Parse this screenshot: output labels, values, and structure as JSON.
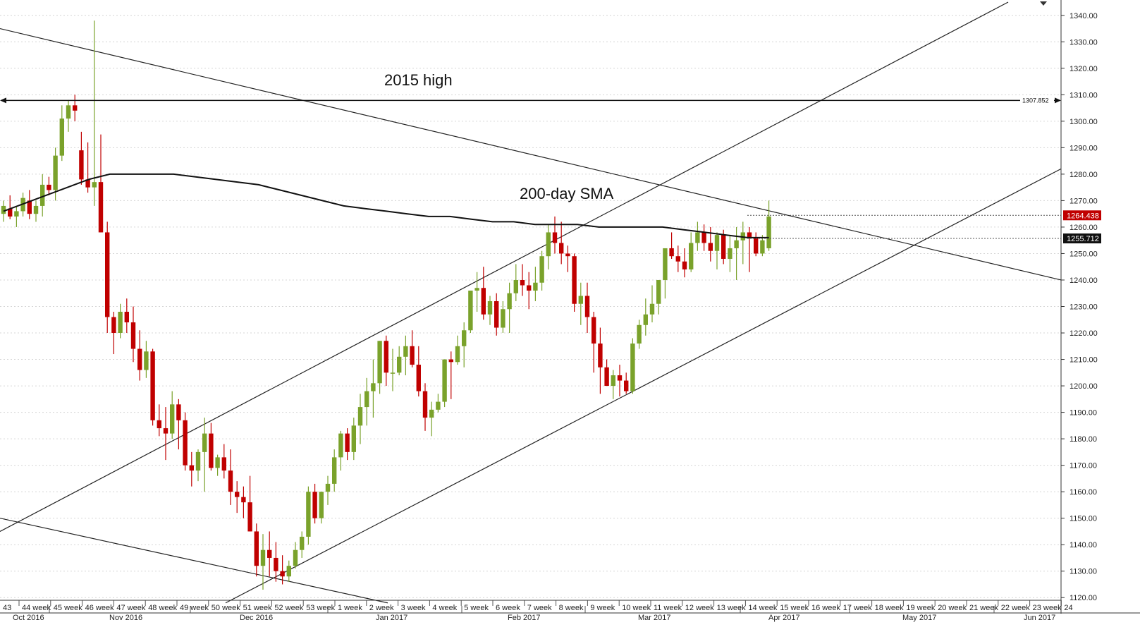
{
  "chart_data": {
    "type": "candlestick",
    "ylim": [
      1115,
      1345
    ],
    "y_ticks": [
      1120,
      1130,
      1140,
      1150,
      1160,
      1170,
      1180,
      1190,
      1200,
      1210,
      1220,
      1230,
      1240,
      1250,
      1260,
      1270,
      1280,
      1290,
      1300,
      1310,
      1320,
      1330,
      1340
    ],
    "y_tick_labels": [
      "1120.00",
      "1130.00",
      "1140.00",
      "1150.00",
      "1160.00",
      "1170.00",
      "1180.00",
      "1190.00",
      "1200.00",
      "1210.00",
      "1220.00",
      "1230.00",
      "1240.00",
      "1250.00",
      "1260.00",
      "1270.00",
      "1280.00",
      "1290.00",
      "1300.00",
      "1310.00",
      "1320.00",
      "1330.00",
      "1340.00"
    ],
    "week_labels": [
      "43",
      "44 week",
      "45 week",
      "46 week",
      "47 week",
      "48 week",
      "49 week",
      "50 week",
      "51 week",
      "52 week",
      "53 week",
      "1 week",
      "2 week",
      "3 week",
      "4 week",
      "5 week",
      "6 week",
      "7 week",
      "8 week",
      "9 week",
      "10 week",
      "11 week",
      "12 week",
      "13 week",
      "14 week",
      "15 week",
      "16 week",
      "17 week",
      "18 week",
      "19 week",
      "20 week",
      "21 week",
      "22 week",
      "23 week",
      "24"
    ],
    "month_labels": [
      "Oct 2016",
      "Nov 2016",
      "Dec 2016",
      "Jan 2017",
      "Feb 2017",
      "Mar 2017",
      "Apr 2017",
      "May 2017",
      "Jun 2017"
    ],
    "candles": [
      [
        1265,
        1270,
        1262,
        1268
      ],
      [
        1267,
        1272,
        1263,
        1264
      ],
      [
        1264,
        1268,
        1260,
        1266
      ],
      [
        1266,
        1273,
        1264,
        1271
      ],
      [
        1270,
        1274,
        1263,
        1265
      ],
      [
        1265,
        1270,
        1262,
        1268
      ],
      [
        1268,
        1280,
        1264,
        1276
      ],
      [
        1276,
        1279,
        1272,
        1274
      ],
      [
        1274,
        1290,
        1270,
        1287
      ],
      [
        1287,
        1306,
        1285,
        1301
      ],
      [
        1301,
        1308,
        1296,
        1306
      ],
      [
        1306,
        1310,
        1300,
        1304
      ],
      [
        1289,
        1296,
        1276,
        1278
      ],
      [
        1278,
        1292,
        1273,
        1275
      ],
      [
        1275,
        1338,
        1268,
        1277
      ],
      [
        1277,
        1295,
        1258,
        1258
      ],
      [
        1258,
        1262,
        1220,
        1226
      ],
      [
        1226,
        1228,
        1212,
        1220
      ],
      [
        1220,
        1231,
        1218,
        1228
      ],
      [
        1228,
        1233,
        1220,
        1224
      ],
      [
        1224,
        1230,
        1209,
        1214
      ],
      [
        1214,
        1221,
        1202,
        1206
      ],
      [
        1206,
        1217,
        1203,
        1213
      ],
      [
        1213,
        1214,
        1185,
        1187
      ],
      [
        1187,
        1193,
        1181,
        1184
      ],
      [
        1184,
        1192,
        1172,
        1182
      ],
      [
        1182,
        1198,
        1180,
        1193
      ],
      [
        1193,
        1195,
        1176,
        1187
      ],
      [
        1187,
        1190,
        1168,
        1170
      ],
      [
        1170,
        1175,
        1162,
        1168
      ],
      [
        1168,
        1176,
        1164,
        1175
      ],
      [
        1175,
        1188,
        1160,
        1182
      ],
      [
        1182,
        1186,
        1168,
        1169
      ],
      [
        1169,
        1174,
        1166,
        1173
      ],
      [
        1173,
        1178,
        1165,
        1168
      ],
      [
        1168,
        1176,
        1155,
        1160
      ],
      [
        1160,
        1164,
        1152,
        1158
      ],
      [
        1158,
        1162,
        1150,
        1156
      ],
      [
        1156,
        1166,
        1145,
        1145
      ],
      [
        1145,
        1148,
        1128,
        1132
      ],
      [
        1132,
        1144,
        1123,
        1138
      ],
      [
        1138,
        1145,
        1128,
        1135
      ],
      [
        1135,
        1141,
        1126,
        1130
      ],
      [
        1130,
        1136,
        1125,
        1128
      ],
      [
        1128,
        1134,
        1126,
        1132
      ],
      [
        1132,
        1141,
        1131,
        1138
      ],
      [
        1138,
        1145,
        1135,
        1143
      ],
      [
        1143,
        1162,
        1140,
        1160
      ],
      [
        1160,
        1163,
        1148,
        1150
      ],
      [
        1150,
        1160,
        1148,
        1160
      ],
      [
        1160,
        1166,
        1155,
        1163
      ],
      [
        1163,
        1176,
        1160,
        1173
      ],
      [
        1173,
        1183,
        1168,
        1182
      ],
      [
        1182,
        1184,
        1172,
        1175
      ],
      [
        1175,
        1188,
        1172,
        1185
      ],
      [
        1185,
        1197,
        1178,
        1192
      ],
      [
        1192,
        1203,
        1185,
        1198
      ],
      [
        1198,
        1210,
        1188,
        1201
      ],
      [
        1201,
        1217,
        1197,
        1217
      ],
      [
        1217,
        1219,
        1200,
        1205
      ],
      [
        1205,
        1214,
        1198,
        1205
      ],
      [
        1205,
        1215,
        1204,
        1211
      ],
      [
        1211,
        1219,
        1204,
        1215
      ],
      [
        1215,
        1221,
        1207,
        1208
      ],
      [
        1208,
        1215,
        1196,
        1198
      ],
      [
        1198,
        1201,
        1183,
        1188
      ],
      [
        1188,
        1194,
        1181,
        1191
      ],
      [
        1191,
        1197,
        1190,
        1194
      ],
      [
        1194,
        1210,
        1192,
        1210
      ],
      [
        1210,
        1213,
        1195,
        1209
      ],
      [
        1209,
        1219,
        1208,
        1215
      ],
      [
        1215,
        1224,
        1207,
        1221
      ],
      [
        1221,
        1235,
        1220,
        1236
      ],
      [
        1236,
        1243,
        1228,
        1237
      ],
      [
        1237,
        1245,
        1225,
        1227
      ],
      [
        1227,
        1234,
        1223,
        1232
      ],
      [
        1232,
        1235,
        1219,
        1222
      ],
      [
        1222,
        1232,
        1220,
        1229
      ],
      [
        1229,
        1239,
        1220,
        1235
      ],
      [
        1235,
        1246,
        1232,
        1240
      ],
      [
        1240,
        1246,
        1234,
        1238
      ],
      [
        1238,
        1243,
        1229,
        1236
      ],
      [
        1236,
        1245,
        1232,
        1239
      ],
      [
        1239,
        1251,
        1236,
        1249
      ],
      [
        1249,
        1261,
        1244,
        1258
      ],
      [
        1258,
        1264,
        1250,
        1254
      ],
      [
        1254,
        1262,
        1246,
        1250
      ],
      [
        1250,
        1253,
        1243,
        1249
      ],
      [
        1249,
        1250,
        1228,
        1231
      ],
      [
        1231,
        1239,
        1223,
        1234
      ],
      [
        1234,
        1239,
        1220,
        1226
      ],
      [
        1226,
        1228,
        1205,
        1216
      ],
      [
        1216,
        1222,
        1197,
        1207
      ],
      [
        1207,
        1210,
        1200,
        1200
      ],
      [
        1200,
        1206,
        1195,
        1204
      ],
      [
        1204,
        1208,
        1196,
        1202
      ],
      [
        1202,
        1205,
        1197,
        1198
      ],
      [
        1198,
        1218,
        1197,
        1216
      ],
      [
        1216,
        1225,
        1214,
        1223
      ],
      [
        1223,
        1233,
        1219,
        1227
      ],
      [
        1227,
        1238,
        1224,
        1231
      ],
      [
        1231,
        1240,
        1227,
        1240
      ],
      [
        1240,
        1251,
        1233,
        1252
      ],
      [
        1252,
        1258,
        1248,
        1249
      ],
      [
        1249,
        1253,
        1243,
        1247
      ],
      [
        1247,
        1252,
        1241,
        1244
      ],
      [
        1244,
        1258,
        1243,
        1254
      ],
      [
        1254,
        1262,
        1251,
        1258
      ],
      [
        1258,
        1261,
        1251,
        1254
      ],
      [
        1254,
        1260,
        1247,
        1251
      ],
      [
        1251,
        1258,
        1244,
        1257
      ],
      [
        1257,
        1259,
        1246,
        1248
      ],
      [
        1248,
        1257,
        1243,
        1252
      ],
      [
        1252,
        1260,
        1240,
        1255
      ],
      [
        1255,
        1262,
        1246,
        1258
      ],
      [
        1258,
        1260,
        1243,
        1256
      ],
      [
        1256,
        1258,
        1249,
        1250
      ],
      [
        1250,
        1257,
        1249,
        1255
      ],
      [
        1252,
        1270,
        1251,
        1264
      ]
    ],
    "sma200": {
      "label": "200-day SMA",
      "values": [
        1266,
        1269,
        1272,
        1275,
        1278,
        1280,
        1280,
        1280,
        1280,
        1279,
        1278,
        1277,
        1276,
        1274,
        1272,
        1270,
        1268,
        1267,
        1266,
        1265,
        1264,
        1264,
        1263,
        1262,
        1262,
        1261,
        1261,
        1261,
        1260,
        1260,
        1260,
        1260,
        1259,
        1258,
        1257,
        1256,
        1256
      ]
    },
    "levels": [
      {
        "label": "2015 high",
        "value": 1307.852,
        "tag": "1307.852"
      }
    ],
    "price_tags": [
      {
        "value": 1264.438,
        "text": "1264.438",
        "color": "#c00000"
      },
      {
        "value": 1255.712,
        "text": "1255.712",
        "color": "#111111"
      }
    ],
    "trendlines": [
      {
        "from": [
          0,
          1335
        ],
        "to": [
          1505,
          1240
        ]
      },
      {
        "from": [
          0,
          1150
        ],
        "to": [
          550,
          1118
        ]
      },
      {
        "from": [
          0,
          1145
        ],
        "to": [
          1430,
          1345
        ]
      },
      {
        "from": [
          320,
          1118
        ],
        "to": [
          1505,
          1282
        ]
      }
    ],
    "colors": {
      "up": "#7aa22b",
      "down": "#c00000",
      "sma": "#111111",
      "grid": "#d6d6d6",
      "axis": "#333333"
    }
  }
}
